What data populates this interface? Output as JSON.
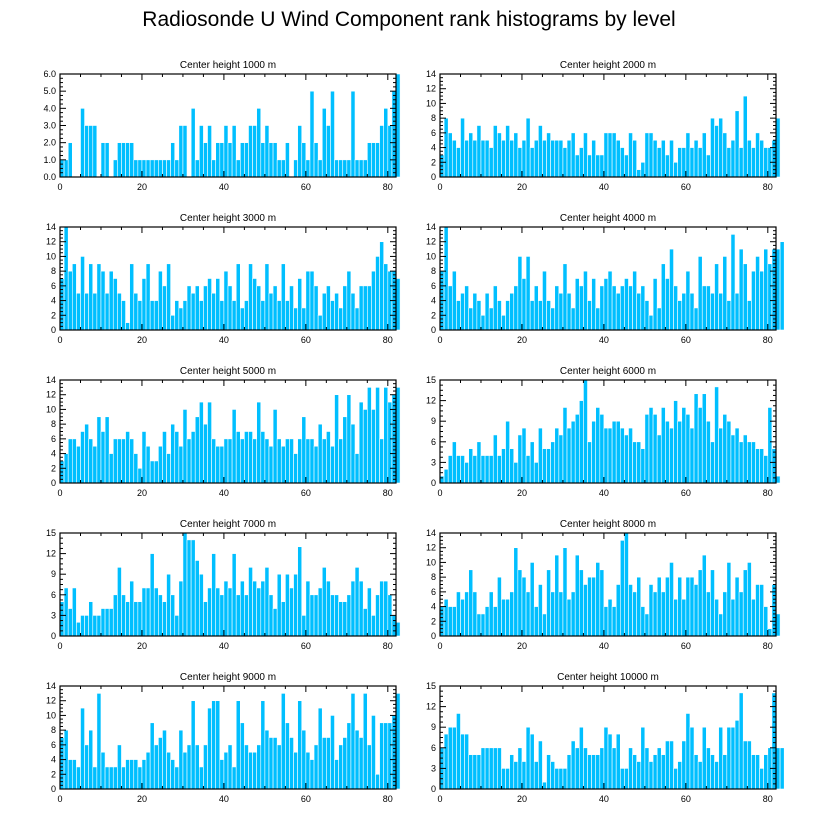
{
  "title": "Radiosonde U Wind Component rank histograms by level",
  "colors": {
    "bar": "#00bfff",
    "bar_edge": "#ffffff",
    "axis": "#000000"
  },
  "chart_data": [
    {
      "type": "bar",
      "title": "Center height 1000 m",
      "xlim": [
        0,
        82
      ],
      "ylim": [
        0,
        6
      ],
      "xticks": [
        0,
        20,
        40,
        60,
        80
      ],
      "yticks": [
        0,
        1,
        2,
        3,
        4,
        5,
        6
      ],
      "yticklabels": [
        "0.0",
        "1.0",
        "2.0",
        "3.0",
        "4.0",
        "5.0",
        "6.0"
      ],
      "values": [
        1,
        1,
        2,
        0,
        0,
        4,
        3,
        3,
        3,
        0,
        2,
        2,
        0,
        1,
        2,
        2,
        2,
        2,
        1,
        1,
        1,
        1,
        1,
        1,
        1,
        1,
        1,
        2,
        1,
        3,
        3,
        0,
        4,
        1,
        3,
        2,
        3,
        1,
        2,
        2,
        3,
        2,
        3,
        1,
        2,
        2,
        3,
        3,
        4,
        2,
        3,
        2,
        2,
        1,
        1,
        2,
        0,
        1,
        3,
        2,
        1,
        5,
        2,
        1,
        4,
        3,
        5,
        1,
        1,
        1,
        1,
        5,
        1,
        1,
        1,
        2,
        2,
        2,
        3,
        4,
        3,
        5,
        6
      ]
    },
    {
      "type": "bar",
      "title": "Center height 2000 m",
      "xlim": [
        0,
        82
      ],
      "ylim": [
        0,
        14
      ],
      "xticks": [
        0,
        20,
        40,
        60,
        80
      ],
      "yticks": [
        0,
        2,
        4,
        6,
        8,
        10,
        12,
        14
      ],
      "yticklabels": [
        "0",
        "2",
        "4",
        "6",
        "8",
        "10",
        "12",
        "14"
      ],
      "values": [
        3,
        8,
        6,
        5,
        4,
        8,
        5,
        6,
        5,
        7,
        5,
        5,
        4,
        7,
        6,
        5,
        7,
        5,
        6,
        4,
        5,
        8,
        4,
        5,
        7,
        5,
        6,
        5,
        5,
        5,
        4,
        5,
        6,
        3,
        4,
        6,
        3,
        5,
        3,
        3,
        6,
        6,
        6,
        5,
        4,
        3,
        6,
        5,
        1,
        2,
        6,
        6,
        5,
        4,
        5,
        3,
        5,
        2,
        4,
        4,
        6,
        4,
        5,
        4,
        6,
        3,
        8,
        7,
        8,
        6,
        4,
        5,
        9,
        4,
        11,
        5,
        4,
        6,
        5,
        4,
        4,
        5,
        8
      ]
    },
    {
      "type": "bar",
      "title": "Center height 3000 m",
      "xlim": [
        0,
        82
      ],
      "ylim": [
        0,
        14
      ],
      "xticks": [
        0,
        20,
        40,
        60,
        80
      ],
      "yticks": [
        0,
        2,
        4,
        6,
        8,
        10,
        12,
        14
      ],
      "yticklabels": [
        "0",
        "2",
        "4",
        "6",
        "8",
        "10",
        "12",
        "14"
      ],
      "values": [
        7,
        14,
        8,
        9,
        5,
        10,
        5,
        9,
        5,
        9,
        8,
        5,
        8,
        7,
        5,
        4,
        1,
        9,
        5,
        4,
        7,
        9,
        4,
        4,
        8,
        6,
        9,
        2,
        4,
        3,
        4,
        6,
        5,
        6,
        4,
        6,
        7,
        5,
        7,
        4,
        8,
        6,
        4,
        9,
        3,
        4,
        9,
        7,
        6,
        4,
        9,
        5,
        6,
        4,
        9,
        4,
        6,
        3,
        7,
        3,
        8,
        8,
        6,
        2,
        5,
        6,
        4,
        5,
        3,
        6,
        8,
        5,
        3,
        6,
        6,
        6,
        8,
        10,
        12,
        9,
        8,
        8,
        7
      ]
    },
    {
      "type": "bar",
      "title": "Center height 4000 m",
      "xlim": [
        0,
        82
      ],
      "ylim": [
        0,
        14
      ],
      "xticks": [
        0,
        20,
        40,
        60,
        80
      ],
      "yticks": [
        0,
        2,
        4,
        6,
        8,
        10,
        12,
        14
      ],
      "yticklabels": [
        "0",
        "2",
        "4",
        "6",
        "8",
        "10",
        "12",
        "14"
      ],
      "values": [
        8,
        14,
        6,
        8,
        4,
        5,
        6,
        3,
        5,
        4,
        2,
        5,
        3,
        6,
        4,
        2,
        4,
        5,
        6,
        10,
        7,
        10,
        4,
        6,
        4,
        8,
        4,
        3,
        6,
        5,
        9,
        5,
        3,
        7,
        6,
        8,
        4,
        7,
        3,
        6,
        7,
        8,
        6,
        5,
        6,
        7,
        6,
        8,
        5,
        6,
        4,
        2,
        7,
        3,
        9,
        7,
        11,
        6,
        4,
        5,
        8,
        5,
        3,
        10,
        6,
        6,
        5,
        9,
        5,
        10,
        4,
        13,
        5,
        11,
        9,
        4,
        8,
        10,
        8,
        11,
        9,
        11,
        11,
        12
      ]
    },
    {
      "type": "bar",
      "title": "Center height 5000 m",
      "xlim": [
        0,
        82
      ],
      "ylim": [
        0,
        14
      ],
      "xticks": [
        0,
        20,
        40,
        60,
        80
      ],
      "yticks": [
        0,
        2,
        4,
        6,
        8,
        10,
        12,
        14
      ],
      "yticklabels": [
        "0",
        "2",
        "4",
        "6",
        "8",
        "10",
        "12",
        "14"
      ],
      "values": [
        3,
        4,
        6,
        6,
        5,
        7,
        8,
        6,
        5,
        9,
        7,
        9,
        4,
        6,
        6,
        6,
        7,
        6,
        4,
        2,
        7,
        5,
        3,
        3,
        5,
        7,
        4,
        8,
        7,
        5,
        10,
        6,
        7,
        9,
        11,
        8,
        11,
        6,
        5,
        5,
        6,
        6,
        10,
        7,
        6,
        7,
        7,
        6,
        11,
        7,
        6,
        5,
        10,
        6,
        5,
        6,
        6,
        4,
        6,
        9,
        6,
        6,
        5,
        8,
        6,
        7,
        5,
        12,
        6,
        9,
        12,
        8,
        4,
        11,
        10,
        13,
        10,
        13,
        6,
        13,
        11,
        12,
        13
      ]
    },
    {
      "type": "bar",
      "title": "Center height 6000 m",
      "xlim": [
        0,
        82
      ],
      "ylim": [
        0,
        15
      ],
      "xticks": [
        0,
        20,
        40,
        60,
        80
      ],
      "yticks": [
        0,
        3,
        6,
        9,
        12,
        15
      ],
      "yticklabels": [
        "0",
        "3",
        "6",
        "9",
        "12",
        "15"
      ],
      "values": [
        1,
        2,
        4,
        6,
        4,
        4,
        3,
        5,
        4,
        6,
        4,
        4,
        4,
        7,
        4,
        5,
        9,
        5,
        3,
        7,
        8,
        4,
        6,
        3,
        8,
        5,
        5,
        6,
        8,
        7,
        11,
        8,
        9,
        10,
        12,
        15,
        6,
        9,
        11,
        10,
        8,
        8,
        9,
        9,
        8,
        7,
        8,
        6,
        6,
        5,
        10,
        11,
        10,
        7,
        11,
        9,
        8,
        12,
        9,
        11,
        10,
        8,
        13,
        11,
        13,
        9,
        6,
        14,
        8,
        10,
        9,
        7,
        8,
        6,
        7,
        6,
        6,
        5,
        5,
        4,
        11,
        5,
        1
      ]
    },
    {
      "type": "bar",
      "title": "Center height 7000 m",
      "xlim": [
        0,
        82
      ],
      "ylim": [
        0,
        15
      ],
      "xticks": [
        0,
        20,
        40,
        60,
        80
      ],
      "yticks": [
        0,
        3,
        6,
        9,
        12,
        15
      ],
      "yticklabels": [
        "0",
        "3",
        "6",
        "9",
        "12",
        "15"
      ],
      "values": [
        5,
        7,
        4,
        7,
        2,
        3,
        3,
        5,
        3,
        3,
        4,
        4,
        4,
        6,
        10,
        6,
        5,
        8,
        5,
        5,
        7,
        7,
        12,
        7,
        6,
        5,
        9,
        6,
        3,
        8,
        15,
        14,
        14,
        11,
        9,
        5,
        7,
        12,
        7,
        6,
        8,
        7,
        12,
        6,
        8,
        6,
        10,
        8,
        7,
        8,
        10,
        6,
        4,
        9,
        5,
        9,
        7,
        9,
        13,
        3,
        8,
        6,
        6,
        7,
        10,
        8,
        6,
        6,
        5,
        5,
        6,
        8,
        10,
        8,
        4,
        7,
        3,
        6,
        8,
        8,
        6,
        3,
        2
      ]
    },
    {
      "type": "bar",
      "title": "Center height 8000 m",
      "xlim": [
        0,
        82
      ],
      "ylim": [
        0,
        14
      ],
      "xticks": [
        0,
        20,
        40,
        60,
        80
      ],
      "yticks": [
        0,
        2,
        4,
        6,
        8,
        10,
        12,
        14
      ],
      "yticklabels": [
        "0",
        "2",
        "4",
        "6",
        "8",
        "10",
        "12",
        "14"
      ],
      "values": [
        4,
        5,
        4,
        4,
        6,
        5,
        6,
        9,
        6,
        3,
        3,
        4,
        6,
        4,
        8,
        5,
        5,
        6,
        12,
        9,
        8,
        6,
        10,
        4,
        7,
        3,
        9,
        6,
        11,
        6,
        12,
        5,
        6,
        11,
        9,
        7,
        8,
        8,
        10,
        9,
        4,
        5,
        4,
        7,
        13,
        14,
        7,
        6,
        8,
        4,
        3,
        7,
        6,
        8,
        6,
        8,
        10,
        5,
        8,
        5,
        8,
        8,
        7,
        9,
        11,
        6,
        9,
        5,
        3,
        6,
        10,
        5,
        8,
        6,
        9,
        10,
        5,
        7,
        7,
        4,
        1,
        7,
        3
      ]
    },
    {
      "type": "bar",
      "title": "Center height 9000 m",
      "xlim": [
        0,
        82
      ],
      "ylim": [
        0,
        14
      ],
      "xticks": [
        0,
        20,
        40,
        60,
        80
      ],
      "yticks": [
        0,
        2,
        4,
        6,
        8,
        10,
        12,
        14
      ],
      "yticklabels": [
        "0",
        "2",
        "4",
        "6",
        "8",
        "10",
        "12",
        "14"
      ],
      "values": [
        7,
        8,
        4,
        4,
        3,
        11,
        6,
        8,
        3,
        13,
        5,
        3,
        3,
        3,
        6,
        3,
        4,
        4,
        4,
        3,
        4,
        5,
        9,
        6,
        7,
        8,
        5,
        4,
        3,
        8,
        5,
        6,
        12,
        6,
        3,
        6,
        11,
        12,
        12,
        4,
        5,
        6,
        3,
        12,
        9,
        6,
        5,
        5,
        6,
        12,
        8,
        7,
        7,
        6,
        13,
        9,
        7,
        5,
        12,
        8,
        5,
        4,
        6,
        11,
        7,
        7,
        10,
        4,
        6,
        7,
        9,
        13,
        8,
        7,
        13,
        6,
        10,
        2,
        9,
        9,
        9,
        10,
        13
      ]
    },
    {
      "type": "bar",
      "title": "Center height 10000 m",
      "xlim": [
        0,
        82
      ],
      "ylim": [
        0,
        15
      ],
      "xticks": [
        0,
        20,
        40,
        60,
        80
      ],
      "yticks": [
        0,
        3,
        6,
        9,
        12,
        15
      ],
      "yticklabels": [
        "0",
        "3",
        "6",
        "9",
        "12",
        "15"
      ],
      "values": [
        6,
        8,
        9,
        9,
        11,
        8,
        8,
        5,
        5,
        5,
        6,
        6,
        6,
        6,
        6,
        3,
        3,
        5,
        4,
        6,
        4,
        9,
        8,
        4,
        7,
        1,
        5,
        4,
        3,
        3,
        3,
        5,
        7,
        6,
        9,
        6,
        5,
        5,
        5,
        6,
        9,
        8,
        6,
        8,
        3,
        3,
        6,
        5,
        4,
        9,
        6,
        4,
        5,
        6,
        5,
        7,
        7,
        3,
        4,
        7,
        11,
        9,
        5,
        4,
        9,
        6,
        5,
        4,
        9,
        5,
        9,
        9,
        10,
        14,
        7,
        7,
        5,
        5,
        3,
        5,
        6,
        14,
        6,
        6
      ]
    }
  ]
}
